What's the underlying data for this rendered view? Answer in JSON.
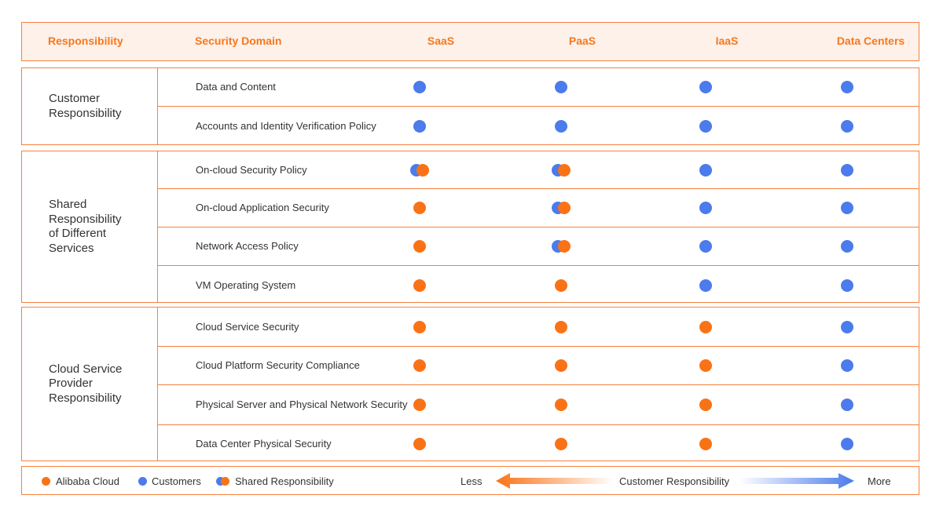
{
  "header": {
    "responsibility": "Responsibility",
    "security_domain": "Security Domain",
    "saas": "SaaS",
    "paas": "PaaS",
    "iaas": "IaaS",
    "data_centers": "Data Centers"
  },
  "colors": {
    "alibaba": "#f97316",
    "customer": "#4b7bec",
    "border": "#f6813e"
  },
  "groups": [
    {
      "label": "Customer\nResponsibility",
      "rows": [
        {
          "domain": "Data and Content",
          "cells": [
            "customer",
            "customer",
            "customer",
            "customer"
          ]
        },
        {
          "domain": "Accounts and Identity Verification Policy",
          "cells": [
            "customer",
            "customer",
            "customer",
            "customer"
          ]
        }
      ]
    },
    {
      "label": "Shared\nResponsibility\nof Different\nServices",
      "rows": [
        {
          "domain": "On-cloud Security Policy",
          "cells": [
            "shared",
            "shared",
            "customer",
            "customer"
          ]
        },
        {
          "domain": "On-cloud Application Security",
          "cells": [
            "alibaba",
            "shared",
            "customer",
            "customer"
          ]
        },
        {
          "domain": "Network Access Policy",
          "cells": [
            "alibaba",
            "shared",
            "customer",
            "customer"
          ]
        },
        {
          "domain": "VM Operating System",
          "cells": [
            "alibaba",
            "alibaba",
            "customer",
            "customer"
          ]
        }
      ]
    },
    {
      "label": "Cloud Service\nProvider\nResponsibility",
      "rows": [
        {
          "domain": "Cloud Service Security",
          "cells": [
            "alibaba",
            "alibaba",
            "alibaba",
            "customer"
          ]
        },
        {
          "domain": "Cloud Platform Security Compliance",
          "cells": [
            "alibaba",
            "alibaba",
            "alibaba",
            "customer"
          ]
        },
        {
          "domain": "Physical Server and Physical Network Security",
          "cells": [
            "alibaba",
            "alibaba",
            "alibaba",
            "customer"
          ]
        },
        {
          "domain": "Data Center Physical Security",
          "cells": [
            "alibaba",
            "alibaba",
            "alibaba",
            "customer"
          ]
        }
      ]
    }
  ],
  "legend": {
    "alibaba": "Alibaba Cloud",
    "customers": "Customers",
    "shared": "Shared Responsibility",
    "less": "Less",
    "axis": "Customer Responsibility",
    "more": "More"
  }
}
